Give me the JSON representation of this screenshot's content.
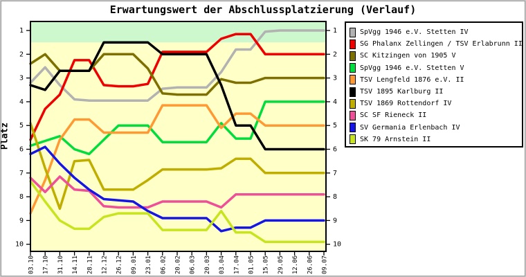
{
  "title": "Erwartungswert der Abschlussplatzierung (Verlauf)",
  "chart_data": {
    "type": "line",
    "title": "Erwartungswert der Abschlussplatzierung (Verlauf)",
    "xlabel": "",
    "ylabel": "Platz",
    "y_inverted": true,
    "grid": false,
    "legend_position": "top-right",
    "ylim": [
      0.62,
      10.3
    ],
    "y_ticks": [
      "1",
      "2",
      "3",
      "4",
      "5",
      "6",
      "7",
      "8",
      "9",
      "10"
    ],
    "x_tick_labels": [
      "03.10",
      "17.10",
      "31.10",
      "14.11",
      "28.11",
      "12.12",
      "26.12",
      "09.01",
      "23.01",
      "06.02",
      "20.02",
      "06.03",
      "20.03",
      "03.04",
      "17.04",
      "01.05",
      "15.05",
      "29.05",
      "12.06",
      "26.06",
      "09.07"
    ],
    "plot_background": "#ffffc8",
    "highlight_band": {
      "from_rank": 0.62,
      "to_rank": 1.5,
      "color": "#cdf7cd"
    },
    "frame_color": "#000000",
    "series": [
      {
        "name": "SpVgg 1946 e.V. Stetten IV",
        "color": "#b2b2b2",
        "values": [
          3.2,
          2.55,
          3.3,
          3.9,
          3.95,
          3.95,
          3.95,
          3.95,
          3.95,
          3.45,
          3.4,
          3.4,
          3.4,
          2.75,
          1.8,
          1.8,
          1.05,
          1.0,
          1.0,
          1.0,
          1.0
        ]
      },
      {
        "name": "SG Phalanx Zellingen / TSV Erlabrunn II",
        "color": "#ee0000",
        "values": [
          5.6,
          4.3,
          3.7,
          2.25,
          2.25,
          3.3,
          3.35,
          3.35,
          3.25,
          1.9,
          1.9,
          1.9,
          1.9,
          1.35,
          1.15,
          1.15,
          2.0,
          2.0,
          2.0,
          2.0,
          2.0
        ]
      },
      {
        "name": "SC Kitzingen von 1905 V",
        "color": "#7d7000",
        "values": [
          2.4,
          2.0,
          2.7,
          2.7,
          2.7,
          2.0,
          2.0,
          2.0,
          2.6,
          3.65,
          3.7,
          3.7,
          3.7,
          3.05,
          3.2,
          3.2,
          3.0,
          3.0,
          3.0,
          3.0,
          3.0
        ]
      },
      {
        "name": "SpVgg 1946 e.V. Stetten V",
        "color": "#00dd3c",
        "values": [
          5.85,
          5.65,
          5.45,
          6.0,
          6.2,
          5.6,
          5.0,
          5.0,
          5.0,
          5.7,
          5.7,
          5.7,
          5.7,
          4.9,
          5.55,
          5.55,
          4.0,
          4.0,
          4.0,
          4.0,
          4.0
        ]
      },
      {
        "name": "TSV Lengfeld 1876 e.V. II",
        "color": "#ff9933",
        "values": [
          8.7,
          7.3,
          5.6,
          4.75,
          4.75,
          5.3,
          5.3,
          5.3,
          5.3,
          4.15,
          4.15,
          4.15,
          4.15,
          5.1,
          4.5,
          4.5,
          5.0,
          5.0,
          5.0,
          5.0,
          5.0
        ]
      },
      {
        "name": "TSV 1895 Karlburg II",
        "color": "#000000",
        "values": [
          3.3,
          3.5,
          2.7,
          2.7,
          2.7,
          1.5,
          1.5,
          1.5,
          1.5,
          2.0,
          2.0,
          2.0,
          2.0,
          3.3,
          5.0,
          5.0,
          6.0,
          6.0,
          6.0,
          6.0,
          6.0
        ]
      },
      {
        "name": "TSV 1869 Rottendorf IV",
        "color": "#bfae00",
        "values": [
          4.9,
          6.8,
          8.5,
          6.5,
          6.45,
          7.7,
          7.7,
          7.7,
          7.3,
          6.85,
          6.85,
          6.85,
          6.85,
          6.8,
          6.4,
          6.4,
          7.0,
          7.0,
          7.0,
          7.0,
          7.0
        ]
      },
      {
        "name": "SC SF Rieneck II",
        "color": "#ee4f98",
        "values": [
          7.2,
          7.8,
          7.15,
          7.7,
          7.75,
          8.4,
          8.45,
          8.45,
          8.45,
          8.2,
          8.2,
          8.2,
          8.2,
          8.45,
          7.9,
          7.9,
          7.9,
          7.9,
          7.9,
          7.9,
          7.9
        ]
      },
      {
        "name": "SV Germania Erlenbach IV",
        "color": "#1515e6",
        "values": [
          6.2,
          5.9,
          6.6,
          7.2,
          7.7,
          8.1,
          8.15,
          8.2,
          8.6,
          8.9,
          8.9,
          8.9,
          8.9,
          9.45,
          9.3,
          9.3,
          9.0,
          9.0,
          9.0,
          9.0,
          9.0
        ]
      },
      {
        "name": "SK 79 Arnstein II",
        "color": "#c8e41e",
        "values": [
          7.35,
          8.2,
          9.0,
          9.35,
          9.35,
          8.85,
          8.7,
          8.7,
          8.7,
          9.4,
          9.4,
          9.4,
          9.4,
          8.6,
          9.5,
          9.5,
          9.9,
          9.9,
          9.9,
          9.9,
          9.9
        ]
      }
    ]
  }
}
